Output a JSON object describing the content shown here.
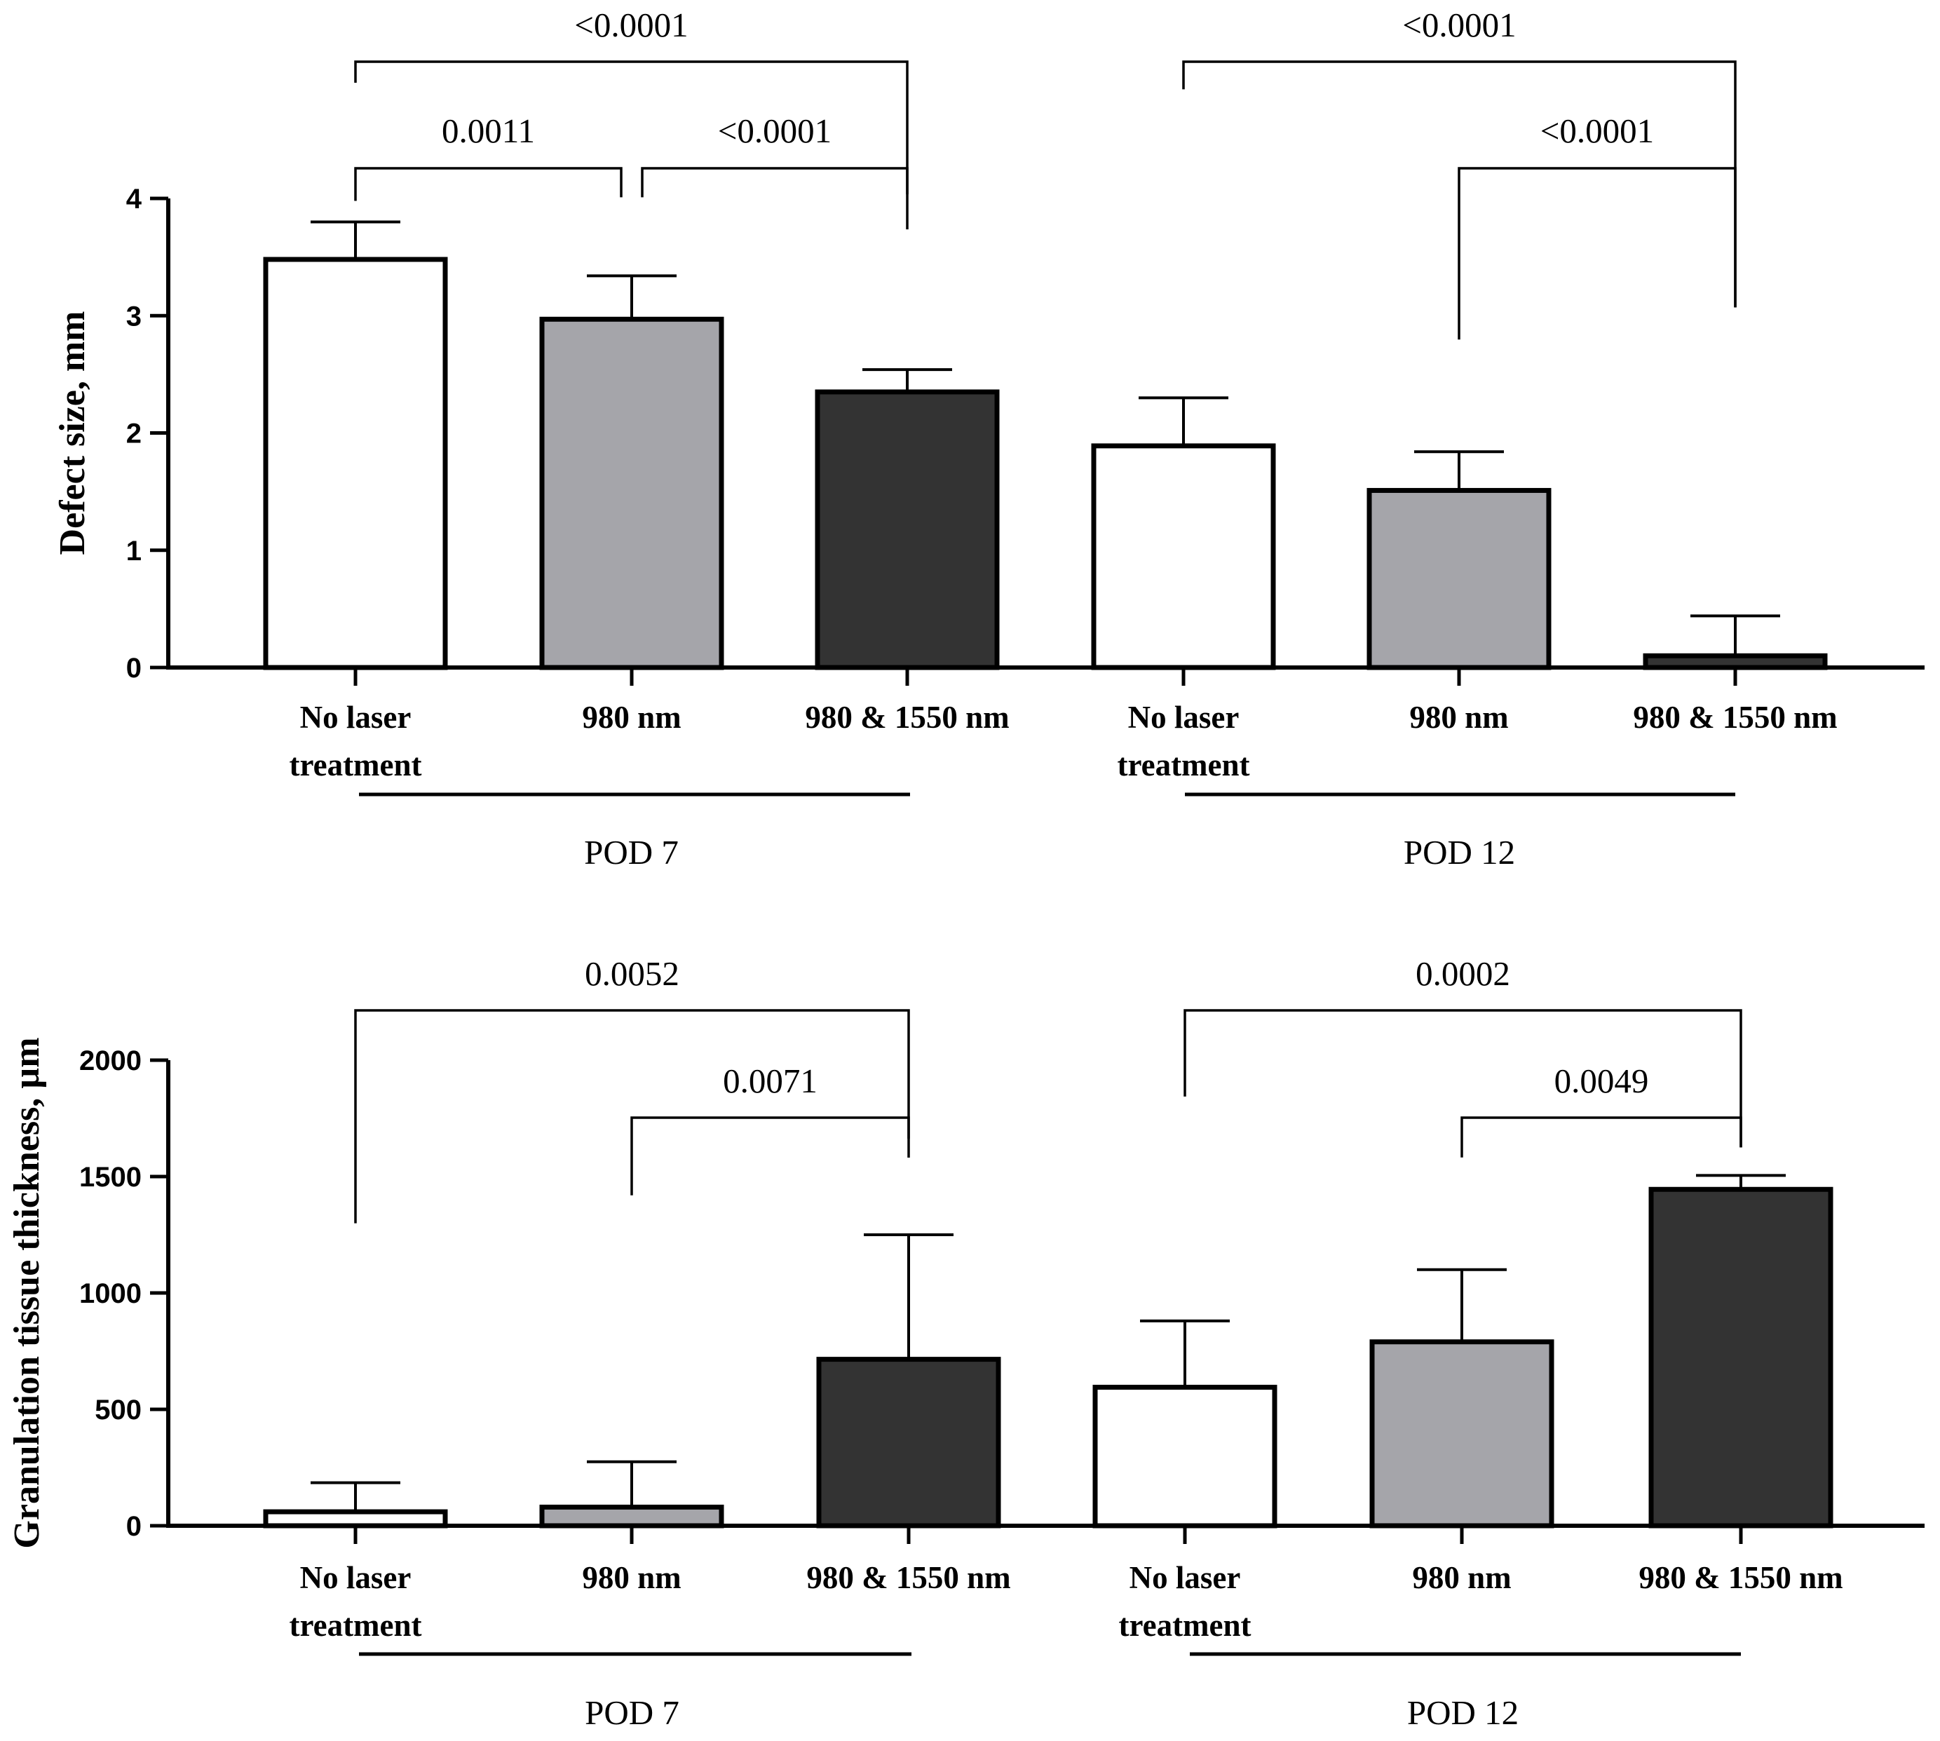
{
  "chart_data": [
    {
      "type": "bar",
      "title": "",
      "xlabel": "",
      "ylabel": "Defect size, mm",
      "ylim": [
        0,
        4
      ],
      "yticks": [
        0,
        1,
        2,
        3,
        4
      ],
      "ytick_labels": [
        "0",
        "1",
        "2",
        "3",
        "4"
      ],
      "categories": [
        "No laser treatment",
        "980 nm",
        "980 & 1550 nm",
        "No laser treatment",
        "980 nm",
        "980 & 1550 nm"
      ],
      "category_lines": [
        [
          "No laser",
          "treatment"
        ],
        [
          "980 nm"
        ],
        [
          "980 & 1550 nm"
        ],
        [
          "No laser",
          "treatment"
        ],
        [
          "980 nm"
        ],
        [
          "980 & 1550 nm"
        ]
      ],
      "values": [
        3.48,
        2.97,
        2.35,
        1.89,
        1.51,
        0.1
      ],
      "errors": [
        0.32,
        0.37,
        0.19,
        0.41,
        0.33,
        0.34
      ],
      "fills": [
        "#ffffff",
        "#a5a5aa",
        "#333333",
        "#ffffff",
        "#a5a5aa",
        "#333333"
      ],
      "groups": [
        {
          "label": "POD 7",
          "from": 0,
          "to": 2
        },
        {
          "label": "POD 12",
          "from": 3,
          "to": 5
        }
      ],
      "comparisons": [
        {
          "from": 0,
          "to": 2,
          "p": "<0.0001"
        },
        {
          "from": 0,
          "to": 1,
          "p": "0.0011"
        },
        {
          "from": 1,
          "to": 2,
          "p": "<0.0001"
        },
        {
          "from": 3,
          "to": 5,
          "p": "<0.0001"
        },
        {
          "from": 4,
          "to": 5,
          "p": "<0.0001"
        }
      ]
    },
    {
      "type": "bar",
      "title": "",
      "xlabel": "",
      "ylabel": "Granulation tissue thickness, µm",
      "ylim": [
        0,
        2000
      ],
      "yticks": [
        0,
        500,
        1000,
        1500,
        2000
      ],
      "ytick_labels": [
        "0",
        "500",
        "1000",
        "1500",
        "2000"
      ],
      "categories": [
        "No laser treatment",
        "980 nm",
        "980 & 1550 nm",
        "No laser treatment",
        "980 nm",
        "980 & 1550 nm"
      ],
      "category_lines": [
        [
          "No laser",
          "treatment"
        ],
        [
          "980 nm"
        ],
        [
          "980 & 1550 nm"
        ],
        [
          "No laser",
          "treatment"
        ],
        [
          "980 nm"
        ],
        [
          "980 & 1550 nm"
        ]
      ],
      "values": [
        60,
        80,
        715,
        595,
        790,
        1445
      ],
      "errors": [
        125,
        195,
        535,
        285,
        310,
        60
      ],
      "fills": [
        "#ffffff",
        "#a5a5aa",
        "#333333",
        "#ffffff",
        "#a5a5aa",
        "#333333"
      ],
      "groups": [
        {
          "label": "POD 7",
          "from": 0,
          "to": 2
        },
        {
          "label": "POD 12",
          "from": 3,
          "to": 5
        }
      ],
      "comparisons": [
        {
          "from": 0,
          "to": 2,
          "p": "0.0052"
        },
        {
          "from": 1,
          "to": 2,
          "p": "0.0071"
        },
        {
          "from": 3,
          "to": 5,
          "p": "0.0002"
        },
        {
          "from": 4,
          "to": 5,
          "p": "0.0049"
        }
      ]
    }
  ]
}
